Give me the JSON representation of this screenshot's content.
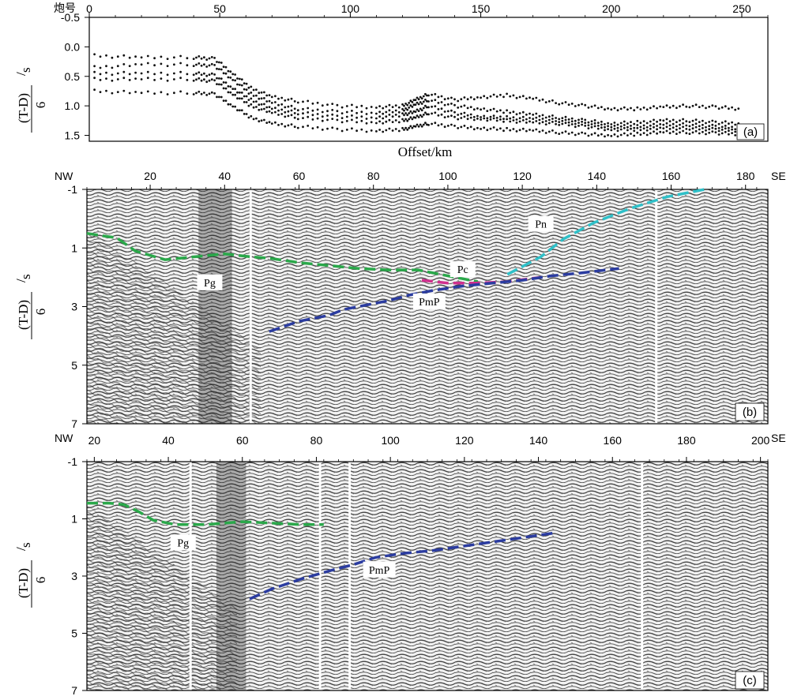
{
  "chart_data": [
    {
      "id": "a",
      "type": "scatter",
      "panel_label": "(a)",
      "top_axis_label": "炮号",
      "xlabel": "Offset/km",
      "ylabel_fraction_num": "(T-D)",
      "ylabel_fraction_den": "6",
      "ylabel_unit": "s",
      "xlim": [
        0,
        260
      ],
      "ylim": [
        -0.5,
        1.6
      ],
      "y_inverted": true,
      "x_ticks": [
        0,
        50,
        100,
        150,
        200,
        250
      ],
      "y_ticks": [
        "-0.5",
        "0.0",
        "0.5",
        "1.0",
        "1.5"
      ],
      "series": [
        {
          "x": [
            2,
            20,
            40,
            48,
            55,
            62,
            70,
            80,
            95,
            110,
            120,
            125,
            130,
            140,
            150,
            160,
            170,
            180,
            190,
            200,
            210,
            220,
            230,
            240,
            250
          ],
          "y": [
            0.15,
            0.18,
            0.18,
            0.2,
            0.45,
            0.7,
            0.85,
            0.92,
            1.0,
            1.02,
            1.0,
            0.9,
            0.8,
            0.9,
            0.85,
            0.82,
            0.88,
            0.95,
            1.0,
            1.05,
            1.05,
            1.02,
            1.0,
            1.02,
            1.05
          ]
        },
        {
          "x": [
            2,
            20,
            40,
            48,
            55,
            62,
            70,
            80,
            95,
            110,
            120,
            125,
            130,
            140,
            150,
            160,
            170,
            180,
            190,
            200,
            210,
            220,
            230,
            240,
            250
          ],
          "y": [
            0.35,
            0.3,
            0.3,
            0.32,
            0.55,
            0.8,
            0.95,
            1.05,
            1.1,
            1.12,
            1.08,
            0.98,
            0.9,
            1.0,
            1.05,
            1.1,
            1.15,
            1.2,
            1.25,
            1.3,
            1.28,
            1.25,
            1.25,
            1.28,
            1.3
          ]
        },
        {
          "x": [
            2,
            20,
            40,
            48,
            55,
            62,
            70,
            80,
            95,
            110,
            120,
            125,
            130,
            140,
            150,
            160,
            170,
            180,
            190,
            200,
            210,
            220,
            230,
            240,
            250
          ],
          "y": [
            0.45,
            0.45,
            0.45,
            0.48,
            0.7,
            0.9,
            1.05,
            1.12,
            1.18,
            1.2,
            1.15,
            1.1,
            1.0,
            1.12,
            1.18,
            1.2,
            1.22,
            1.25,
            1.3,
            1.35,
            1.35,
            1.32,
            1.32,
            1.35,
            1.38
          ]
        },
        {
          "x": [
            2,
            20,
            40,
            48,
            55,
            62,
            70,
            80,
            95,
            110,
            120,
            125,
            130,
            140,
            150,
            160,
            170,
            180,
            190,
            200,
            210,
            220,
            230,
            240,
            250
          ],
          "y": [
            0.55,
            0.55,
            0.55,
            0.58,
            0.8,
            1.0,
            1.12,
            1.2,
            1.25,
            1.28,
            1.25,
            1.2,
            1.12,
            1.2,
            1.22,
            1.25,
            1.28,
            1.3,
            1.35,
            1.4,
            1.4,
            1.38,
            1.38,
            1.4,
            1.42
          ]
        },
        {
          "x": [
            2,
            20,
            40,
            48,
            55,
            62,
            70,
            80,
            95,
            110,
            120,
            125,
            130,
            140,
            150,
            160,
            170,
            180,
            190,
            200,
            210,
            220,
            230,
            240,
            250
          ],
          "y": [
            0.75,
            0.78,
            0.78,
            0.8,
            1.0,
            1.2,
            1.3,
            1.35,
            1.4,
            1.42,
            1.4,
            1.35,
            1.3,
            1.35,
            1.38,
            1.4,
            1.42,
            1.45,
            1.48,
            1.5,
            1.48,
            1.45,
            1.45,
            1.46,
            1.48
          ]
        }
      ]
    },
    {
      "id": "b",
      "type": "seismic-section",
      "panel_label": "(b)",
      "left_end": "NW",
      "right_end": "SE",
      "ylabel_fraction_num": "(T-D)",
      "ylabel_fraction_den": "6",
      "ylabel_unit": "s",
      "xlim": [
        3,
        186
      ],
      "ylim": [
        -1,
        7
      ],
      "y_inverted": true,
      "x_ticks": [
        20,
        40,
        60,
        80,
        100,
        120,
        140,
        160,
        180
      ],
      "y_ticks": [
        "-1",
        "1",
        "3",
        "5",
        "7"
      ],
      "phases": [
        {
          "name": "Pg",
          "color": "#2aa84a",
          "x": [
            3,
            8,
            11,
            16,
            24,
            32,
            40,
            47,
            52,
            60,
            68,
            76,
            84,
            92,
            98,
            108
          ],
          "y": [
            0.5,
            0.6,
            0.65,
            1.1,
            1.4,
            1.3,
            1.2,
            1.3,
            1.35,
            1.5,
            1.6,
            1.7,
            1.75,
            1.75,
            1.9,
            2.15
          ]
        },
        {
          "name": "Pc",
          "color": "#d0308e",
          "x": [
            93,
            100,
            108,
            116,
            125
          ],
          "y": [
            2.1,
            2.2,
            2.2,
            2.15,
            2.0
          ]
        },
        {
          "name": "Pn",
          "color": "#2fc0c8",
          "x": [
            116,
            125,
            131,
            139,
            149,
            159,
            169
          ],
          "y": [
            1.9,
            1.3,
            0.7,
            0.15,
            -0.35,
            -0.75,
            -1.0
          ]
        },
        {
          "name": "PmP",
          "color": "#2b3ca0",
          "x": [
            52,
            60,
            68,
            72,
            78,
            84,
            90,
            96,
            104,
            112,
            120,
            128,
            136,
            146
          ],
          "y": [
            3.85,
            3.5,
            3.3,
            3.1,
            2.95,
            2.8,
            2.6,
            2.45,
            2.3,
            2.2,
            2.1,
            1.95,
            1.85,
            1.7
          ]
        }
      ],
      "labels": [
        {
          "text": "Pg",
          "x": 36,
          "y": 2.2
        },
        {
          "text": "Pc",
          "x": 104,
          "y": 1.75
        },
        {
          "text": "Pn",
          "x": 125,
          "y": 0.2
        },
        {
          "text": "PmP",
          "x": 95,
          "y": 2.85
        }
      ],
      "gaps_x": [
        47,
        156
      ],
      "dark_band_x": [
        33,
        42
      ]
    },
    {
      "id": "c",
      "type": "seismic-section",
      "panel_label": "(c)",
      "left_end": "NW",
      "right_end": "SE",
      "ylabel_fraction_num": "(T-D)",
      "ylabel_fraction_den": "6",
      "ylabel_unit": "s",
      "xlim": [
        18,
        202
      ],
      "ylim": [
        -1,
        7
      ],
      "y_inverted": true,
      "x_ticks": [
        20,
        40,
        60,
        80,
        100,
        120,
        140,
        160,
        180,
        200
      ],
      "y_ticks": [
        "-1",
        "1",
        "3",
        "5",
        "7"
      ],
      "phases": [
        {
          "name": "Pg",
          "color": "#2aa84a",
          "x": [
            18,
            24,
            28,
            32,
            36,
            42,
            50,
            60,
            68,
            76,
            82
          ],
          "y": [
            0.45,
            0.45,
            0.5,
            0.75,
            1.05,
            1.2,
            1.2,
            1.1,
            1.15,
            1.2,
            1.2
          ]
        },
        {
          "name": "PmP",
          "color": "#2b3ca0",
          "x": [
            62,
            68,
            76,
            84,
            90,
            96,
            104,
            112,
            120,
            128,
            136,
            144
          ],
          "y": [
            3.8,
            3.45,
            3.1,
            2.8,
            2.6,
            2.35,
            2.2,
            2.1,
            1.95,
            1.8,
            1.65,
            1.5
          ]
        }
      ],
      "labels": [
        {
          "text": "Pg",
          "x": 44,
          "y": 1.85
        },
        {
          "text": "PmP",
          "x": 97,
          "y": 2.8
        }
      ],
      "gaps_x": [
        46,
        81,
        89,
        168
      ],
      "dark_band_x": [
        53,
        61
      ]
    }
  ]
}
